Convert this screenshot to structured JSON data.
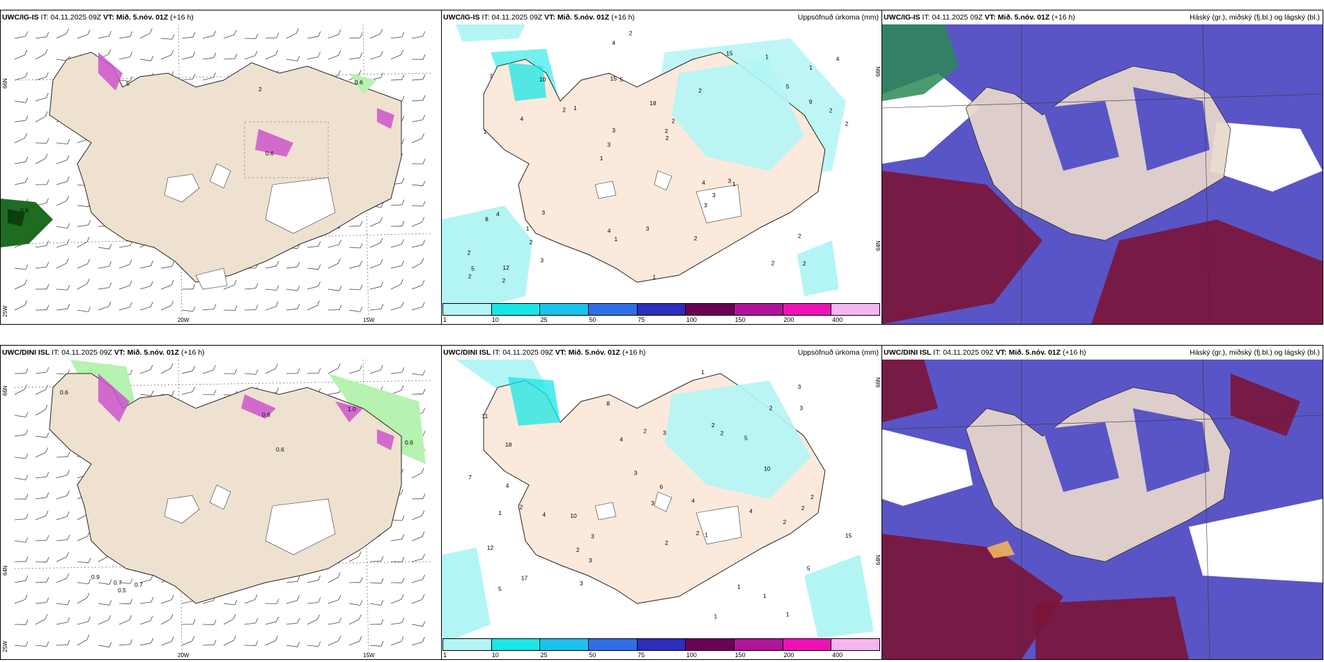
{
  "rows": [
    {
      "model": "UWC/IG-IS",
      "it_label": "IT:",
      "it_value": "04.11.2025 09Z",
      "vt_label": "VT:",
      "vt_value": "Mið. 5.nóv. 01Z",
      "lead": "(+16 h)"
    },
    {
      "model": "UWC/DINI ISL",
      "it_label": "IT:",
      "it_value": "04.11.2025 09Z",
      "vt_label": "VT:",
      "vt_value": "Mið. 5.nóv. 01Z",
      "lead": "(+16 h)"
    }
  ],
  "panel_titles": {
    "precip": "Uppsöfnuð úrkoma (mm)",
    "cloud": "Háský (gr.), miðský (fj.bl.) og lágský (bl.)"
  },
  "axis_labels": {
    "lat66": "66N",
    "lat64": "64N",
    "lon25": "25W",
    "lon20": "20W",
    "lon15": "15W"
  },
  "colorbar": {
    "colors": [
      "#b3f5f5",
      "#19e6e6",
      "#19c3ec",
      "#2f6ee6",
      "#2d2dbe",
      "#6b0055",
      "#b0149b",
      "#ee12b5",
      "#f5b5f0"
    ],
    "ticks": [
      "1",
      "10",
      "25",
      "50",
      "75",
      "100",
      "150",
      "200",
      "400"
    ]
  },
  "wind_panel_values_top": [
    "5",
    "0.6",
    "0.6",
    "0.6",
    "2"
  ],
  "wind_panel_values_bottom": [
    "0.6",
    "0.6",
    "1.0",
    "0.6",
    "0.6",
    "0.9",
    "0.7",
    "0.5",
    "0.7"
  ],
  "precip_values_top": [
    "2",
    "1",
    "1",
    "1",
    "2",
    "12",
    "15",
    "18",
    "4",
    "1",
    "2",
    "2",
    "5",
    "2",
    "1",
    "7",
    "4",
    "2",
    "4",
    "9",
    "3",
    "4",
    "3",
    "10",
    "15",
    "3",
    "2",
    "2",
    "3",
    "1",
    "2",
    "4",
    "3",
    "3",
    "2",
    "2",
    "5",
    "1",
    "2",
    "8",
    "5",
    "4",
    "3",
    "2",
    "1",
    "2",
    "2",
    "3",
    "1",
    "2"
  ],
  "precip_values_bottom": [
    "1",
    "2",
    "2",
    "11",
    "5",
    "18",
    "17",
    "10",
    "5",
    "2",
    "2",
    "1",
    "3",
    "8",
    "4",
    "12",
    "4",
    "6",
    "7",
    "5",
    "3",
    "3",
    "10",
    "15",
    "2",
    "4",
    "4",
    "3",
    "3",
    "3",
    "1",
    "1",
    "2",
    "2",
    "4",
    "2",
    "2",
    "1",
    "2",
    "1",
    "3",
    "2",
    "3",
    "1"
  ]
}
